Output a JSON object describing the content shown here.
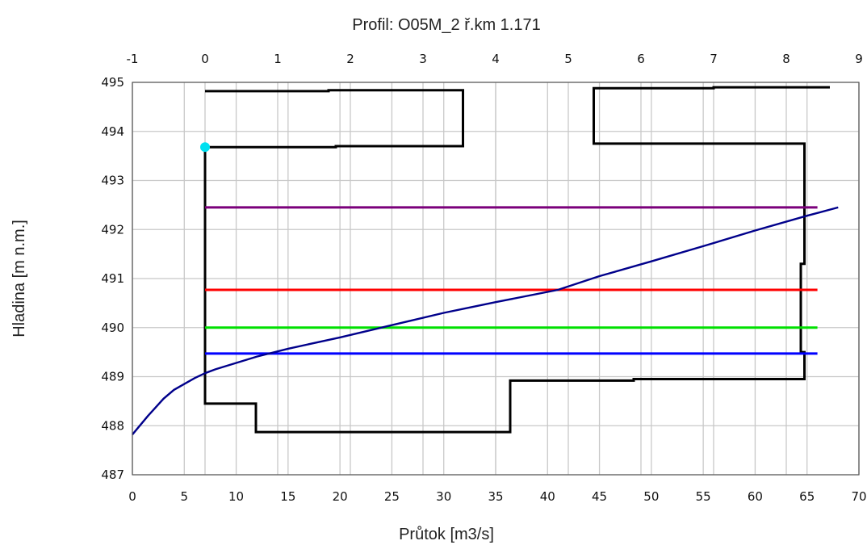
{
  "chart_data": {
    "type": "line",
    "title": "Profil: O05M_2  ř.km 1.171",
    "xlabel": "Průtok [m3/s]",
    "ylabel": "Hladina [m n.m.]",
    "xlim": [
      0,
      70
    ],
    "ylim": [
      487,
      495
    ],
    "x2lim": [
      -1,
      9
    ],
    "grid": true,
    "x_ticks": [
      0,
      5,
      10,
      15,
      20,
      25,
      30,
      35,
      40,
      45,
      50,
      55,
      60,
      65,
      70
    ],
    "x2_ticks": [
      -1,
      0,
      1,
      2,
      3,
      4,
      5,
      6,
      7,
      8,
      9
    ],
    "y_ticks": [
      487,
      488,
      489,
      490,
      491,
      492,
      493,
      494,
      495
    ],
    "profile_upper_left": {
      "color": "#000000",
      "x2": [
        0,
        1.7,
        1.7,
        3.55,
        3.55,
        1.8,
        1.8,
        0
      ],
      "y": [
        494.82,
        494.82,
        494.84,
        494.84,
        493.7,
        493.7,
        493.68,
        493.68
      ]
    },
    "profile_upper_right": {
      "color": "#000000",
      "x2": [
        8.6,
        7.0,
        7.0,
        5.35,
        5.35,
        8.25,
        8.25
      ],
      "y": [
        494.9,
        494.9,
        494.88,
        494.88,
        493.75,
        493.75,
        493.0
      ]
    },
    "profile_bottom": {
      "color": "#000000",
      "x2": [
        0,
        0,
        0.7,
        0.7,
        4.2,
        4.2,
        5.9,
        5.9,
        8.25,
        8.25,
        8.2,
        8.2,
        8.25,
        8.25
      ],
      "y": [
        493.68,
        488.45,
        488.45,
        487.87,
        487.87,
        488.92,
        488.92,
        488.95,
        488.95,
        489.5,
        489.5,
        491.3,
        491.3,
        493.0
      ]
    },
    "series": [
      {
        "color": "#7b007b",
        "x": [
          7,
          66
        ],
        "y": [
          492.45,
          492.45
        ]
      },
      {
        "color": "#ff0000",
        "x": [
          7,
          66
        ],
        "y": [
          490.77,
          490.77
        ]
      },
      {
        "color": "#00e000",
        "x": [
          7,
          66
        ],
        "y": [
          490.0,
          490.0
        ]
      },
      {
        "color": "#0000ff",
        "x": [
          7,
          66
        ],
        "y": [
          489.47,
          489.47
        ]
      },
      {
        "color": "#00008b",
        "x": [
          0,
          1.5,
          3,
          4,
          5,
          6,
          7,
          8,
          10,
          12,
          15,
          20,
          25,
          30,
          35,
          41,
          45,
          50,
          55,
          60,
          65,
          68
        ],
        "y": [
          487.82,
          488.2,
          488.55,
          488.73,
          488.85,
          488.97,
          489.07,
          489.15,
          489.28,
          489.41,
          489.57,
          489.8,
          490.05,
          490.3,
          490.52,
          490.77,
          491.05,
          491.35,
          491.66,
          491.98,
          492.28,
          492.45
        ]
      }
    ],
    "marker": {
      "color": "#00e0f0",
      "x": 7,
      "y": 493.68
    }
  }
}
